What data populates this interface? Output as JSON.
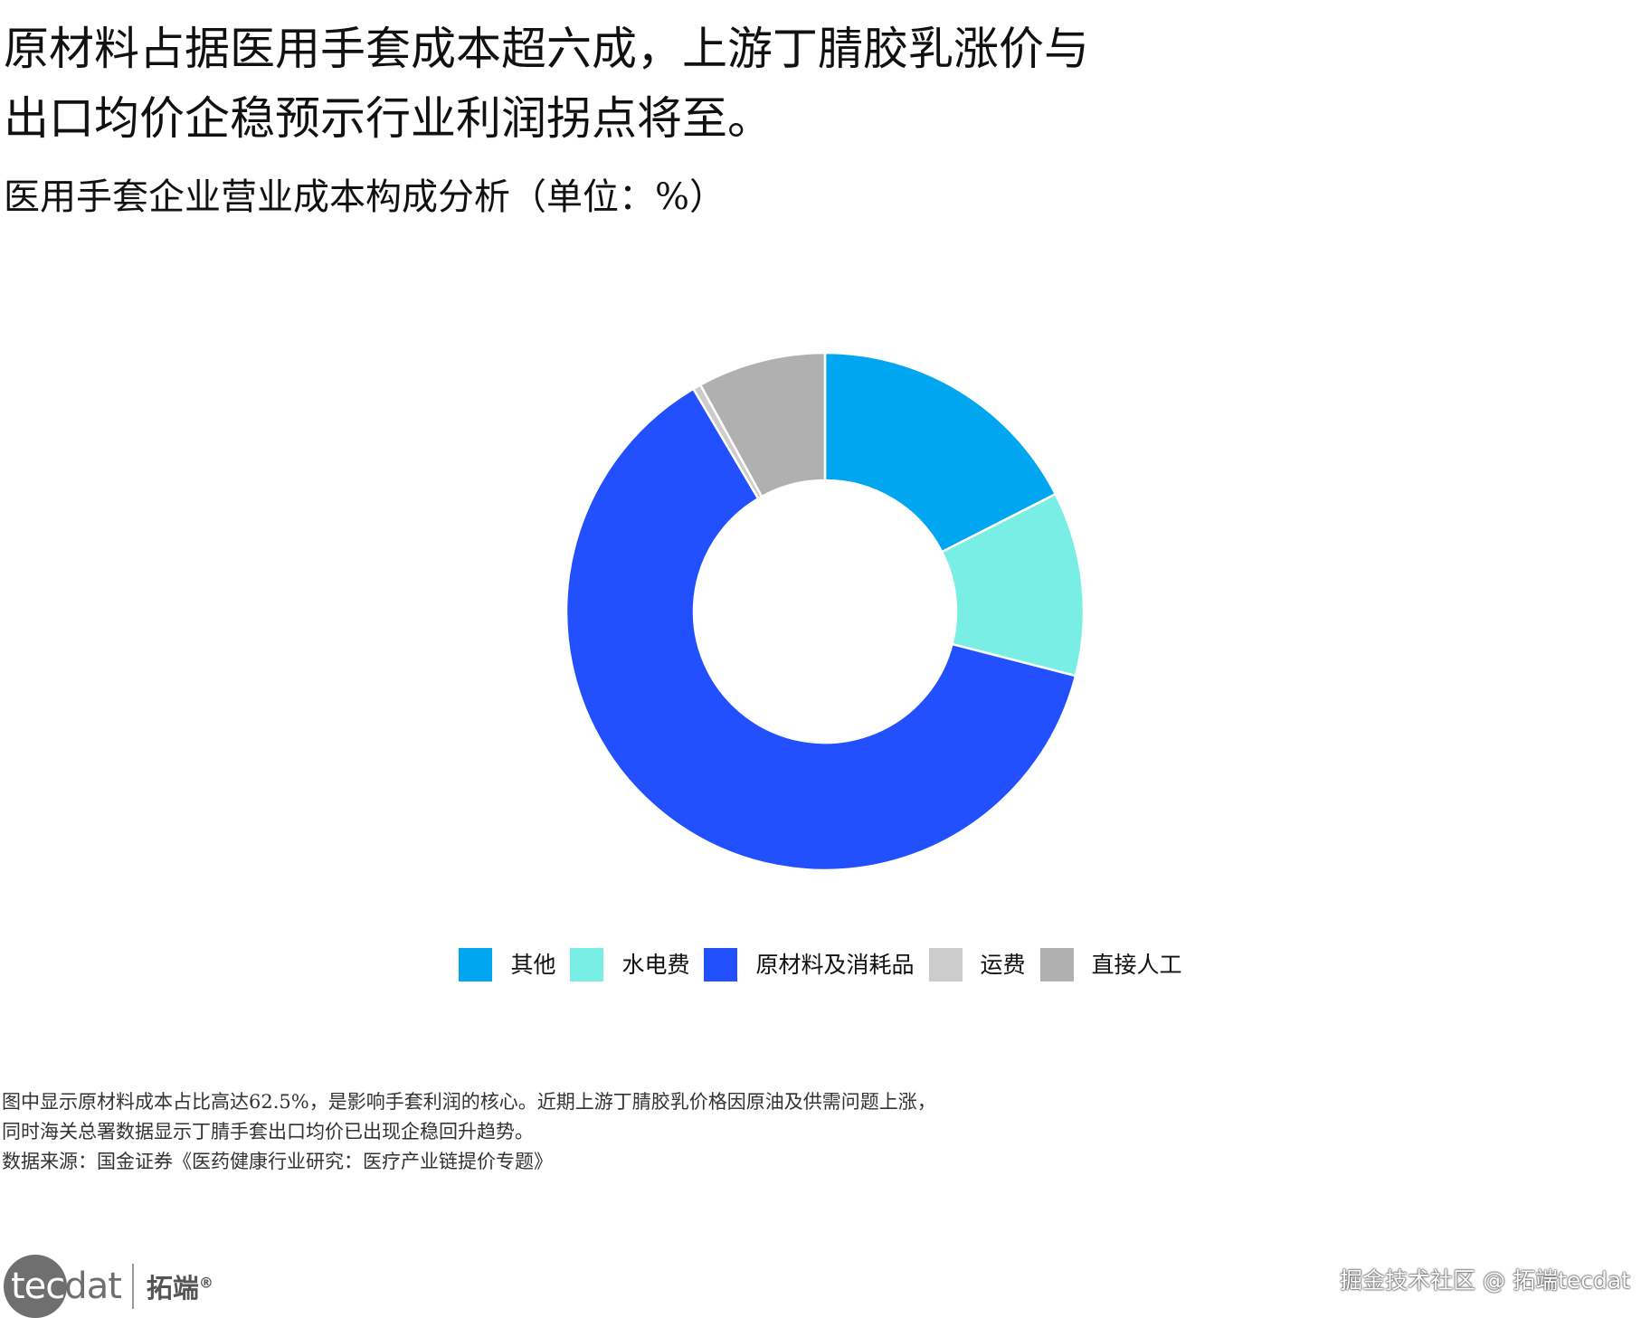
{
  "headline_lines": [
    "原材料占据医用手套成本超六成，上游丁腈胶乳涨价与",
    "出口均价企稳预示行业利润拐点将至。"
  ],
  "chart_data": {
    "type": "pie",
    "title": "医用手套企业营业成本构成分析（单位：%）",
    "labels": [
      "其他",
      "水电费",
      "原材料及消耗品",
      "运费",
      "直接人工"
    ],
    "values": [
      17.5,
      11.5,
      62.5,
      0.5,
      8.0
    ],
    "colors": [
      "#00a6ef",
      "#79eee4",
      "#2350ff",
      "#cccccc",
      "#b0b0b0"
    ],
    "donut": true,
    "legend_position": "bottom"
  },
  "notes": [
    "图中显示原材料成本占比高达62.5%，是影响手套利润的核心。近期上游丁腈胶乳价格因原油及供需问题上涨，",
    "同时海关总署数据显示丁腈手套出口均价已出现企稳回升趋势。",
    "数据来源：国金证券《医药健康行业研究：医疗产业链提价专题》"
  ],
  "logo": {
    "word_light": "tec",
    "word_dark": "dat",
    "cn": "拓端",
    "mark": "®"
  },
  "watermark": "掘金技术社区 @ 拓端tecdat"
}
